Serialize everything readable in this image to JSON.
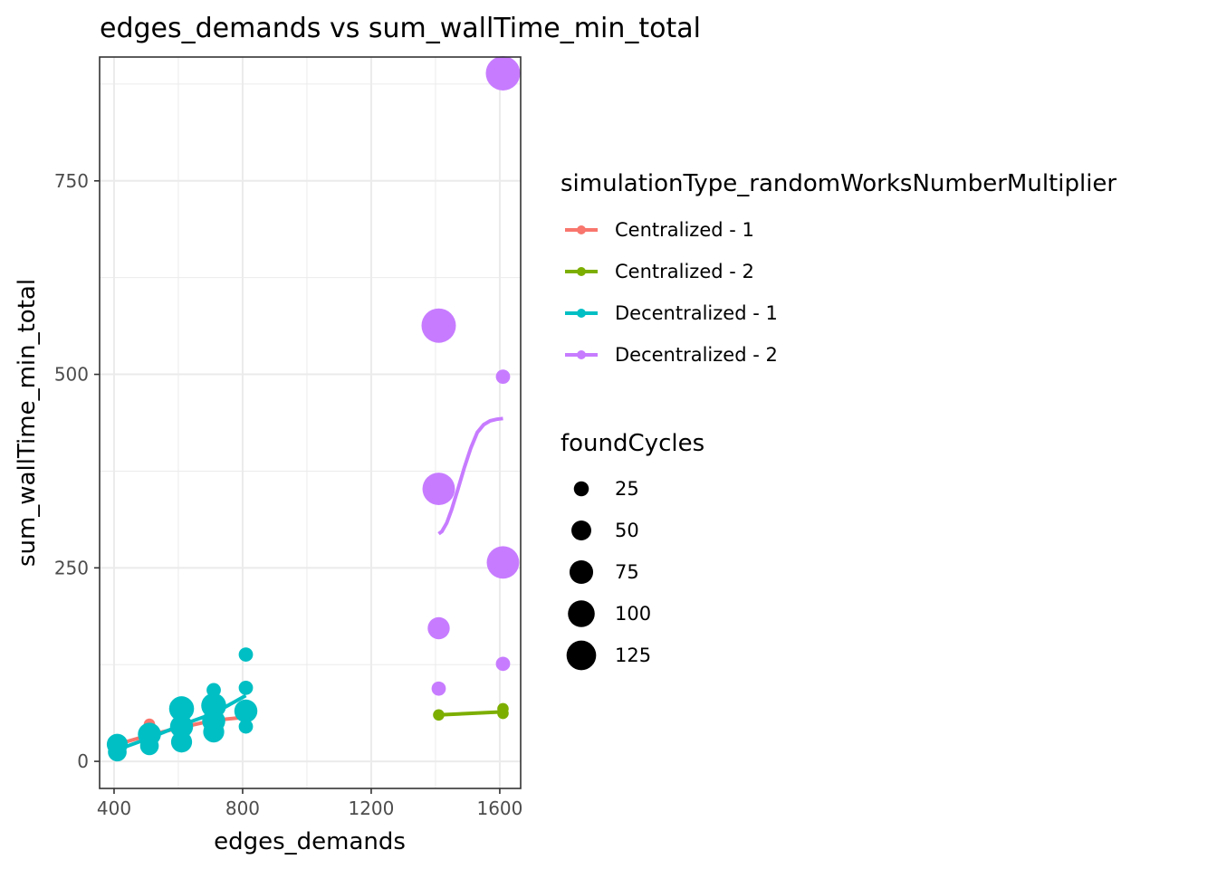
{
  "chart_data": {
    "type": "scatter",
    "title": "edges_demands  vs  sum_wallTime_min_total",
    "xlabel": "edges_demands",
    "ylabel": "sum_wallTime_min_total",
    "xlim": [
      355,
      1665
    ],
    "ylim": [
      -35,
      910
    ],
    "x_ticks": [
      400,
      800,
      1200,
      1600
    ],
    "y_ticks": [
      0,
      250,
      500,
      750
    ],
    "grid": true,
    "legend_placement": "right",
    "color_legend": {
      "title": "simulationType_randomWorksNumberMultiplier",
      "entries": [
        {
          "label": "Centralized - 1",
          "color": "#F8766D"
        },
        {
          "label": "Centralized - 2",
          "color": "#7CAE00"
        },
        {
          "label": "Decentralized - 1",
          "color": "#00BFC4"
        },
        {
          "label": "Decentralized - 2",
          "color": "#C77CFF"
        }
      ]
    },
    "size_legend": {
      "title": "foundCycles",
      "entries": [
        {
          "label": "25",
          "value": 25
        },
        {
          "label": "50",
          "value": 50
        },
        {
          "label": "75",
          "value": 75
        },
        {
          "label": "100",
          "value": 100
        },
        {
          "label": "125",
          "value": 125
        }
      ]
    },
    "series": [
      {
        "name": "Centralized - 1",
        "color": "#F8766D",
        "points": [
          {
            "x": 410,
            "y": 18,
            "size": 8
          },
          {
            "x": 510,
            "y": 48,
            "size": 8
          },
          {
            "x": 510,
            "y": 32,
            "size": 8
          },
          {
            "x": 610,
            "y": 60,
            "size": 8
          },
          {
            "x": 610,
            "y": 40,
            "size": 8
          },
          {
            "x": 710,
            "y": 50,
            "size": 8
          },
          {
            "x": 810,
            "y": 58,
            "size": 8
          }
        ],
        "trend": [
          {
            "x": 410,
            "y": 22
          },
          {
            "x": 510,
            "y": 34
          },
          {
            "x": 610,
            "y": 44
          },
          {
            "x": 710,
            "y": 53
          },
          {
            "x": 810,
            "y": 57
          }
        ]
      },
      {
        "name": "Centralized - 2",
        "color": "#7CAE00",
        "points": [
          {
            "x": 1410,
            "y": 60,
            "size": 8
          },
          {
            "x": 1610,
            "y": 68,
            "size": 8
          },
          {
            "x": 1610,
            "y": 62,
            "size": 8
          }
        ],
        "trend": [
          {
            "x": 1410,
            "y": 60
          },
          {
            "x": 1610,
            "y": 64
          }
        ]
      },
      {
        "name": "Decentralized - 1",
        "color": "#00BFC4",
        "points": [
          {
            "x": 410,
            "y": 22,
            "size": 40
          },
          {
            "x": 410,
            "y": 12,
            "size": 30
          },
          {
            "x": 510,
            "y": 35,
            "size": 50
          },
          {
            "x": 510,
            "y": 20,
            "size": 30
          },
          {
            "x": 610,
            "y": 68,
            "size": 60
          },
          {
            "x": 610,
            "y": 45,
            "size": 50
          },
          {
            "x": 610,
            "y": 25,
            "size": 40
          },
          {
            "x": 710,
            "y": 92,
            "size": 15
          },
          {
            "x": 710,
            "y": 72,
            "size": 60
          },
          {
            "x": 710,
            "y": 52,
            "size": 50
          },
          {
            "x": 710,
            "y": 38,
            "size": 40
          },
          {
            "x": 810,
            "y": 138,
            "size": 15
          },
          {
            "x": 810,
            "y": 95,
            "size": 15
          },
          {
            "x": 810,
            "y": 65,
            "size": 50
          },
          {
            "x": 810,
            "y": 45,
            "size": 15
          }
        ],
        "trend": [
          {
            "x": 410,
            "y": 15
          },
          {
            "x": 510,
            "y": 30
          },
          {
            "x": 610,
            "y": 47
          },
          {
            "x": 710,
            "y": 62
          },
          {
            "x": 810,
            "y": 85
          }
        ]
      },
      {
        "name": "Decentralized - 2",
        "color": "#C77CFF",
        "points": [
          {
            "x": 1410,
            "y": 563,
            "size": 125
          },
          {
            "x": 1410,
            "y": 352,
            "size": 110
          },
          {
            "x": 1410,
            "y": 172,
            "size": 45
          },
          {
            "x": 1410,
            "y": 94,
            "size": 15
          },
          {
            "x": 1610,
            "y": 889,
            "size": 125
          },
          {
            "x": 1610,
            "y": 497,
            "size": 15
          },
          {
            "x": 1610,
            "y": 257,
            "size": 110
          },
          {
            "x": 1610,
            "y": 126,
            "size": 15
          }
        ],
        "trend": [
          {
            "x": 1410,
            "y": 294
          },
          {
            "x": 1420,
            "y": 297
          },
          {
            "x": 1435,
            "y": 308
          },
          {
            "x": 1450,
            "y": 325
          },
          {
            "x": 1470,
            "y": 352
          },
          {
            "x": 1490,
            "y": 380
          },
          {
            "x": 1510,
            "y": 405
          },
          {
            "x": 1530,
            "y": 425
          },
          {
            "x": 1550,
            "y": 435
          },
          {
            "x": 1570,
            "y": 440
          },
          {
            "x": 1590,
            "y": 442
          },
          {
            "x": 1610,
            "y": 443
          }
        ]
      }
    ]
  }
}
